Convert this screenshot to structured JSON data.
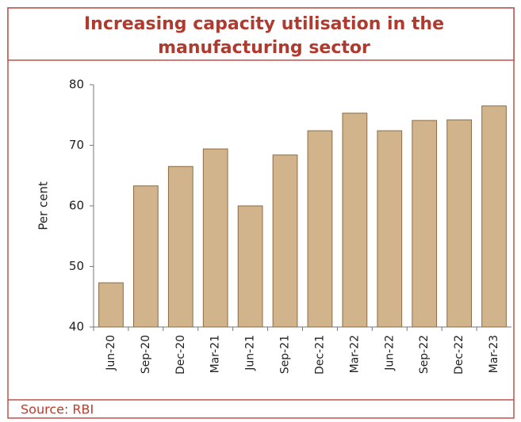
{
  "chart_data": {
    "type": "bar",
    "title": "Increasing capacity utilisation in the manufacturing sector",
    "y_label": "Per cent",
    "source": "Source: RBI",
    "categories": [
      "Jun-20",
      "Sep-20",
      "Dec-20",
      "Mar-21",
      "Jun-21",
      "Sep-21",
      "Dec-21",
      "Mar-22",
      "Jun-22",
      "Sep-22",
      "Dec-22",
      "Mar-23"
    ],
    "values": [
      47.3,
      63.3,
      66.5,
      69.4,
      60.0,
      68.4,
      72.4,
      75.3,
      72.4,
      74.1,
      74.2,
      76.5
    ],
    "color": "#d2b48c",
    "ylim": [
      40,
      80
    ],
    "yticks": [
      40,
      50,
      60,
      70,
      80
    ],
    "grid": false
  }
}
